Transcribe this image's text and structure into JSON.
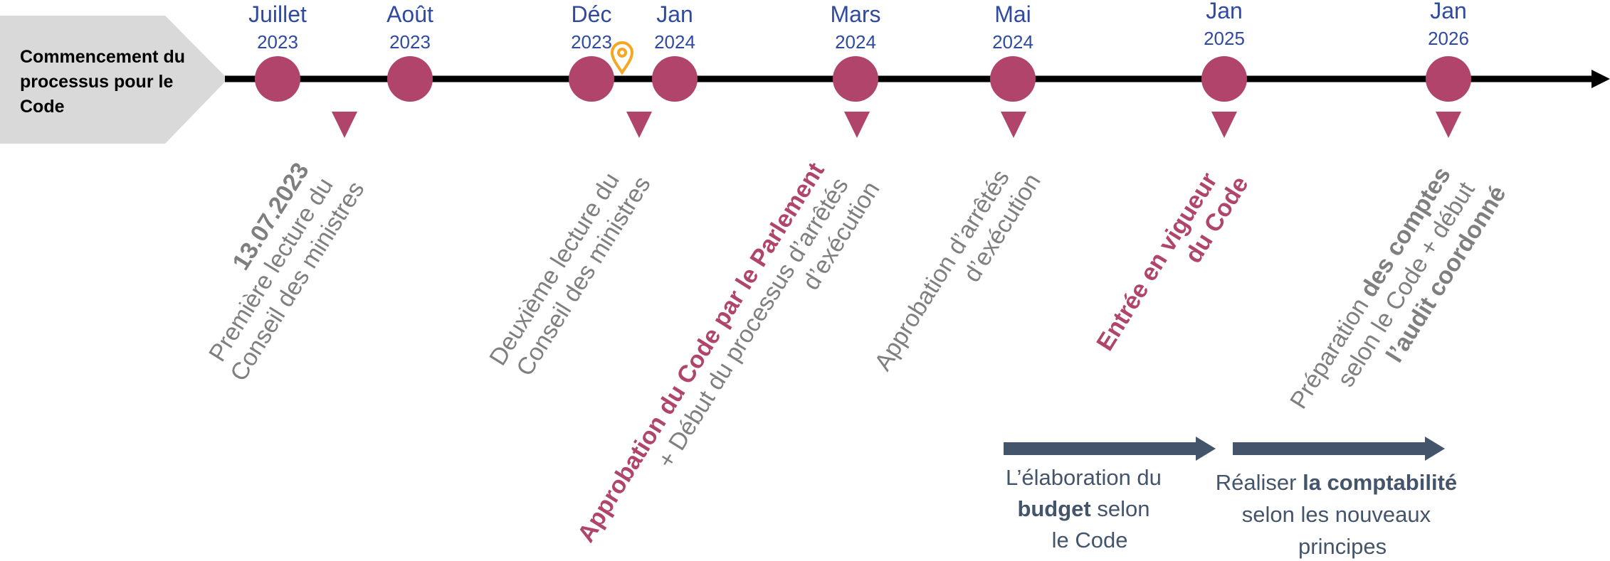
{
  "start": {
    "lines": [
      "Commencement du",
      "processus pour le",
      "Code"
    ]
  },
  "milestones": [
    {
      "month": "Juillet",
      "year": "2023"
    },
    {
      "month": "Août",
      "year": "2023"
    },
    {
      "month": "Déc",
      "year": "2023"
    },
    {
      "month": "Jan",
      "year": "2024"
    },
    {
      "month": "Mars",
      "year": "2024"
    },
    {
      "month": "Mai",
      "year": "2024"
    },
    {
      "month": "Jan",
      "year": "2025"
    },
    {
      "month": "Jan",
      "year": "2026"
    }
  ],
  "events": [
    {
      "lines": [
        "13.07.2023",
        "Première lecture du",
        "Conseil des ministres"
      ]
    },
    {
      "lines": [
        "Deuxième lecture du",
        "Conseil des ministres"
      ]
    },
    {
      "lines": [
        "Approbation du Code par le Parlement",
        "+ Début du processus d’arrêtés",
        "d’exécution"
      ]
    },
    {
      "lines": [
        "Approbation d’arrêtés",
        "d’exécution"
      ]
    },
    {
      "lines": [
        "Entrée en vigueur",
        "du Code"
      ]
    },
    {
      "lines": [
        [
          "Préparation ",
          "des comptes"
        ],
        "selon le Code + début",
        "l’audit coordonné"
      ]
    }
  ],
  "phases": [
    {
      "lines": [
        "L’élaboration du",
        [
          "budget",
          " selon"
        ],
        "le Code"
      ]
    },
    {
      "lines": [
        [
          "Réaliser ",
          "la comptabilité"
        ],
        "selon les nouveaux",
        "principes"
      ]
    }
  ]
}
